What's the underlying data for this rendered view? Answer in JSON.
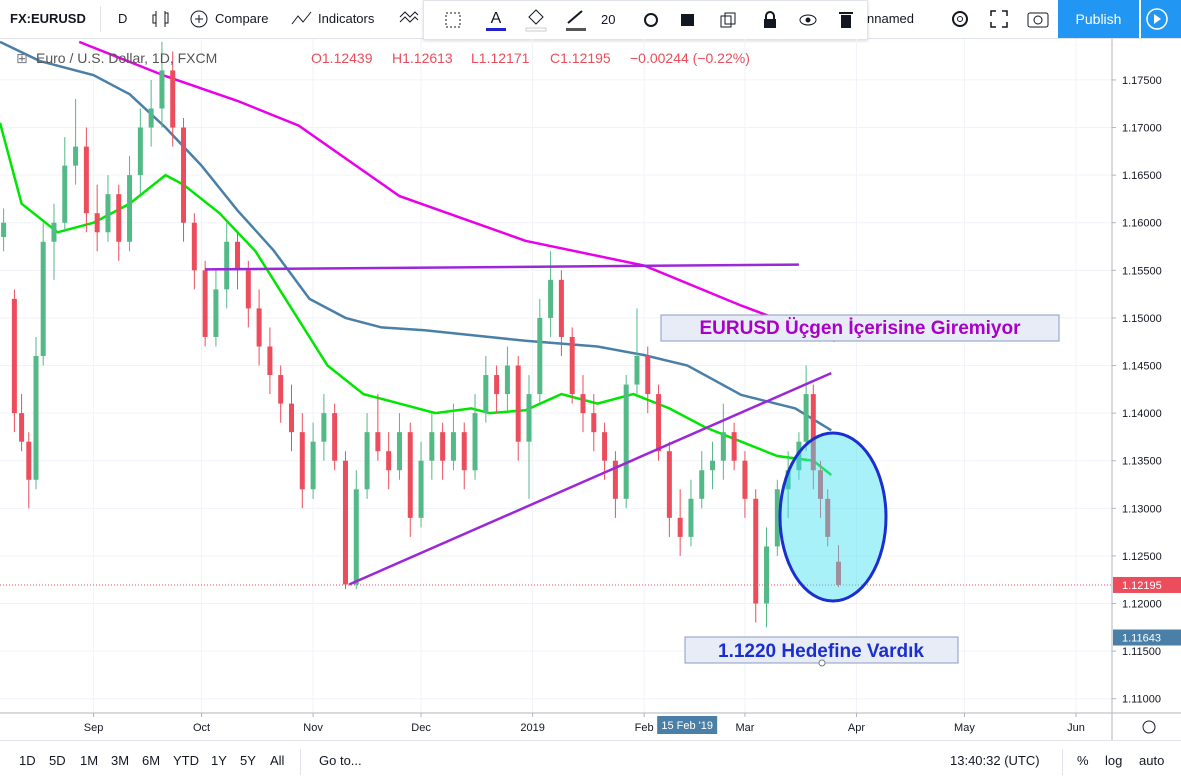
{
  "toolbar": {
    "symbol": "FX:EURUSD",
    "interval": "D",
    "compare": "Compare",
    "indicators": "Indicators",
    "line_width": "20",
    "layout_name": "nnamed",
    "publish": "Publish"
  },
  "legend": {
    "title": "Euro / U.S. Dollar, 1D, FXCM",
    "open": "O1.12439",
    "high": "H1.12613",
    "low": "L1.12171",
    "close": "C1.12195",
    "change": "−0.00244 (−0.22%)"
  },
  "bottom_bar": {
    "ranges": [
      "1D",
      "5D",
      "1M",
      "3M",
      "6M",
      "YTD",
      "1Y",
      "5Y",
      "All"
    ],
    "goto": "Go to...",
    "time": "13:40:32 (UTC)",
    "percent": "%",
    "log": "log",
    "auto": "auto"
  },
  "chart_data": {
    "type": "candlestick",
    "title": "Euro / U.S. Dollar, 1D, FXCM",
    "xlim": [
      -26,
      283
    ],
    "xticks": [
      {
        "value": 0,
        "label": "Sep"
      },
      {
        "value": 30,
        "label": "Oct"
      },
      {
        "value": 61,
        "label": "Nov"
      },
      {
        "value": 91,
        "label": "Dec"
      },
      {
        "value": 122,
        "label": "2019"
      },
      {
        "value": 153,
        "label": "Feb"
      },
      {
        "value": 181,
        "label": "Mar"
      },
      {
        "value": 212,
        "label": "Apr"
      },
      {
        "value": 242,
        "label": "May"
      },
      {
        "value": 273,
        "label": "Jun"
      }
    ],
    "ylim": [
      1.1085,
      1.1793
    ],
    "yticks": [
      {
        "value": 1.11,
        "label": "1.11000"
      },
      {
        "value": 1.115,
        "label": "1.11500"
      },
      {
        "value": 1.12,
        "label": "1.12000"
      },
      {
        "value": 1.125,
        "label": "1.12500"
      },
      {
        "value": 1.13,
        "label": "1.13000"
      },
      {
        "value": 1.135,
        "label": "1.13500"
      },
      {
        "value": 1.14,
        "label": "1.14000"
      },
      {
        "value": 1.145,
        "label": "1.14500"
      },
      {
        "value": 1.15,
        "label": "1.15000"
      },
      {
        "value": 1.155,
        "label": "1.15500"
      },
      {
        "value": 1.16,
        "label": "1.16000"
      },
      {
        "value": 1.165,
        "label": "1.16500"
      },
      {
        "value": 1.17,
        "label": "1.17000"
      },
      {
        "value": 1.175,
        "label": "1.17500"
      }
    ],
    "grid": true,
    "up_color": "#53b987",
    "down_color": "#eb4d5c",
    "x": [
      -25,
      -22,
      -20,
      -18,
      -16,
      -14,
      -11,
      -8,
      -5,
      -2,
      1,
      4,
      7,
      10,
      13,
      16,
      19,
      22,
      25,
      28,
      31,
      34,
      37,
      40,
      43,
      46,
      49,
      52,
      55,
      58,
      61,
      64,
      67,
      70,
      73,
      76,
      79,
      82,
      85,
      88,
      91,
      94,
      97,
      100,
      103,
      106,
      109,
      112,
      115,
      118,
      121,
      124,
      127,
      130,
      133,
      136,
      139,
      142,
      145,
      148,
      151,
      154,
      157,
      160,
      163,
      166,
      169,
      172,
      175,
      178,
      181,
      184,
      187,
      190,
      193,
      196,
      198,
      200,
      202,
      204,
      207
    ],
    "open": [
      1.1585,
      1.152,
      1.14,
      1.137,
      1.133,
      1.146,
      1.158,
      1.16,
      1.166,
      1.168,
      1.161,
      1.159,
      1.163,
      1.158,
      1.165,
      1.17,
      1.172,
      1.176,
      1.17,
      1.16,
      1.155,
      1.148,
      1.153,
      1.158,
      1.155,
      1.151,
      1.147,
      1.144,
      1.141,
      1.138,
      1.132,
      1.137,
      1.14,
      1.135,
      1.122,
      1.132,
      1.138,
      1.136,
      1.134,
      1.138,
      1.129,
      1.135,
      1.138,
      1.135,
      1.138,
      1.134,
      1.14,
      1.144,
      1.142,
      1.145,
      1.137,
      1.142,
      1.15,
      1.154,
      1.148,
      1.142,
      1.14,
      1.138,
      1.135,
      1.131,
      1.143,
      1.146,
      1.142,
      1.136,
      1.129,
      1.127,
      1.131,
      1.134,
      1.135,
      1.138,
      1.135,
      1.131,
      1.12,
      1.126,
      1.132,
      1.134,
      1.137,
      1.142,
      1.134,
      1.131,
      1.12439
    ],
    "high": [
      1.1615,
      1.153,
      1.142,
      1.138,
      1.148,
      1.16,
      1.162,
      1.169,
      1.173,
      1.17,
      1.164,
      1.165,
      1.164,
      1.167,
      1.172,
      1.175,
      1.179,
      1.178,
      1.171,
      1.161,
      1.156,
      1.155,
      1.16,
      1.159,
      1.156,
      1.153,
      1.149,
      1.145,
      1.143,
      1.14,
      1.139,
      1.142,
      1.141,
      1.136,
      1.134,
      1.14,
      1.142,
      1.138,
      1.14,
      1.139,
      1.137,
      1.14,
      1.139,
      1.141,
      1.139,
      1.142,
      1.146,
      1.145,
      1.147,
      1.146,
      1.144,
      1.152,
      1.157,
      1.155,
      1.149,
      1.144,
      1.142,
      1.139,
      1.136,
      1.144,
      1.151,
      1.147,
      1.143,
      1.137,
      1.132,
      1.133,
      1.136,
      1.137,
      1.141,
      1.139,
      1.136,
      1.132,
      1.128,
      1.133,
      1.136,
      1.138,
      1.145,
      1.143,
      1.135,
      1.132,
      1.12613
    ],
    "low": [
      1.157,
      1.138,
      1.136,
      1.13,
      1.132,
      1.145,
      1.154,
      1.159,
      1.164,
      1.159,
      1.157,
      1.158,
      1.156,
      1.157,
      1.163,
      1.168,
      1.17,
      1.168,
      1.158,
      1.153,
      1.147,
      1.147,
      1.151,
      1.153,
      1.149,
      1.145,
      1.142,
      1.139,
      1.136,
      1.13,
      1.131,
      1.135,
      1.134,
      1.1215,
      1.1215,
      1.131,
      1.135,
      1.132,
      1.133,
      1.127,
      1.128,
      1.133,
      1.133,
      1.134,
      1.132,
      1.133,
      1.139,
      1.14,
      1.14,
      1.135,
      1.131,
      1.141,
      1.148,
      1.146,
      1.141,
      1.138,
      1.136,
      1.133,
      1.129,
      1.13,
      1.142,
      1.14,
      1.135,
      1.127,
      1.125,
      1.126,
      1.13,
      1.132,
      1.133,
      1.134,
      1.129,
      1.118,
      1.1175,
      1.125,
      1.129,
      1.133,
      1.136,
      1.132,
      1.129,
      1.126,
      1.12171
    ],
    "close": [
      1.16,
      1.14,
      1.137,
      1.133,
      1.146,
      1.158,
      1.16,
      1.166,
      1.168,
      1.161,
      1.159,
      1.163,
      1.158,
      1.165,
      1.17,
      1.172,
      1.176,
      1.17,
      1.16,
      1.155,
      1.148,
      1.153,
      1.158,
      1.155,
      1.151,
      1.147,
      1.144,
      1.141,
      1.138,
      1.132,
      1.137,
      1.14,
      1.135,
      1.122,
      1.132,
      1.138,
      1.136,
      1.134,
      1.138,
      1.129,
      1.135,
      1.138,
      1.135,
      1.138,
      1.134,
      1.14,
      1.144,
      1.142,
      1.145,
      1.137,
      1.142,
      1.15,
      1.154,
      1.148,
      1.142,
      1.14,
      1.138,
      1.135,
      1.131,
      1.143,
      1.146,
      1.142,
      1.136,
      1.129,
      1.127,
      1.131,
      1.134,
      1.135,
      1.138,
      1.135,
      1.131,
      1.12,
      1.126,
      1.132,
      1.134,
      1.137,
      1.142,
      1.134,
      1.131,
      1.127,
      1.12195
    ],
    "moving_averages": [
      {
        "color": "#00e600",
        "x": [
          -26,
          -20,
          -10,
          0,
          10,
          20,
          25,
          35,
          45,
          55,
          65,
          75,
          85,
          95,
          105,
          110,
          120,
          130,
          140,
          150,
          160,
          170,
          180,
          190,
          200,
          205
        ],
        "values": [
          1.1705,
          1.162,
          1.159,
          1.16,
          1.162,
          1.165,
          1.164,
          1.161,
          1.157,
          1.151,
          1.145,
          1.142,
          1.141,
          1.14,
          1.1405,
          1.14,
          1.1403,
          1.142,
          1.141,
          1.142,
          1.1405,
          1.1385,
          1.137,
          1.1355,
          1.135,
          1.1335
        ]
      },
      {
        "color": "#4a7fa7",
        "x": [
          -26,
          -15,
          0,
          10,
          20,
          30,
          40,
          50,
          60,
          70,
          80,
          92,
          110,
          120,
          140,
          153,
          165,
          180,
          195,
          205
        ],
        "values": [
          1.179,
          1.177,
          1.1755,
          1.1735,
          1.17,
          1.166,
          1.1613,
          1.1571,
          1.152,
          1.15,
          1.149,
          1.1487,
          1.148,
          1.1476,
          1.147,
          1.1461,
          1.145,
          1.1419,
          1.1405,
          1.1382
        ]
      },
      {
        "color": "#e800e8",
        "x": [
          -4,
          20,
          40,
          57,
          85,
          120,
          153,
          180,
          206
        ],
        "values": [
          1.179,
          1.1754,
          1.1728,
          1.1702,
          1.1628,
          1.1581,
          1.1555,
          1.1513,
          1.1476
        ]
      }
    ],
    "trend_lines": [
      {
        "color": "#9c27d9",
        "x": [
          31,
          196
        ],
        "values": [
          1.1551,
          1.1556
        ]
      },
      {
        "color": "#9c27d9",
        "x": [
          71,
          205
        ],
        "values": [
          1.122,
          1.1442
        ]
      }
    ],
    "price_labels": [
      {
        "value": 1.12195,
        "label": "1.12195",
        "color": "#eb4d5c"
      },
      {
        "value": 1.11643,
        "label": "1.11643",
        "color": "#4a7fa7"
      }
    ],
    "crosshair_date": "15 Feb '19",
    "annotations": [
      "EURUSD Üçgen İçerisine Giremiyor",
      "1.1220 Hedefine Vardık"
    ]
  }
}
